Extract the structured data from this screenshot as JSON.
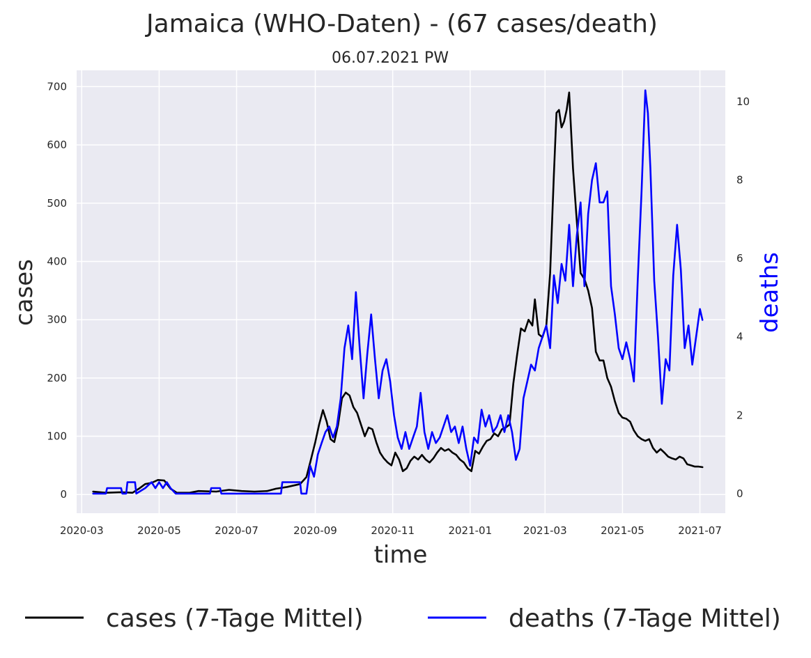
{
  "chart_data": {
    "type": "line",
    "title": "Jamaica (WHO-Daten) - (67 cases/death)",
    "subtitle": "06.07.2021 PW",
    "xlabel": "time",
    "ylabel": "cases",
    "y2label": "deaths",
    "ylim": [
      -32,
      728
    ],
    "y2lim": [
      -0.5,
      10.8
    ],
    "x_range": [
      "2020-02-26",
      "2021-07-21"
    ],
    "y_ticks": [
      0,
      100,
      200,
      300,
      400,
      500,
      600,
      700
    ],
    "y2_ticks": [
      0,
      2,
      4,
      6,
      8,
      10
    ],
    "x_ticks": [
      "2020-03",
      "2020-05",
      "2020-07",
      "2020-09",
      "2020-11",
      "2021-01",
      "2021-03",
      "2021-05",
      "2021-07"
    ],
    "grid": true,
    "legend_position": "below",
    "colors": {
      "cases": "#000000",
      "deaths": "#0000ff",
      "plot_bg": "#eaeaf2",
      "grid": "#ffffff"
    },
    "series": [
      {
        "name": "cases (7-Tage Mittel)",
        "axis": "left",
        "points": [
          [
            "2020-03-10",
            5
          ],
          [
            "2020-03-20",
            3
          ],
          [
            "2020-04-01",
            4
          ],
          [
            "2020-04-10",
            3
          ],
          [
            "2020-04-15",
            10
          ],
          [
            "2020-04-20",
            18
          ],
          [
            "2020-04-25",
            20
          ],
          [
            "2020-04-30",
            25
          ],
          [
            "2020-05-05",
            24
          ],
          [
            "2020-05-10",
            10
          ],
          [
            "2020-05-15",
            3
          ],
          [
            "2020-05-25",
            3
          ],
          [
            "2020-06-01",
            6
          ],
          [
            "2020-06-15",
            5
          ],
          [
            "2020-06-25",
            8
          ],
          [
            "2020-07-05",
            6
          ],
          [
            "2020-07-15",
            5
          ],
          [
            "2020-07-25",
            6
          ],
          [
            "2020-08-01",
            10
          ],
          [
            "2020-08-10",
            13
          ],
          [
            "2020-08-20",
            18
          ],
          [
            "2020-08-25",
            30
          ],
          [
            "2020-08-28",
            55
          ],
          [
            "2020-09-01",
            90
          ],
          [
            "2020-09-04",
            120
          ],
          [
            "2020-09-07",
            145
          ],
          [
            "2020-09-10",
            125
          ],
          [
            "2020-09-13",
            95
          ],
          [
            "2020-09-16",
            90
          ],
          [
            "2020-09-19",
            120
          ],
          [
            "2020-09-22",
            165
          ],
          [
            "2020-09-25",
            175
          ],
          [
            "2020-09-28",
            170
          ],
          [
            "2020-10-01",
            150
          ],
          [
            "2020-10-04",
            140
          ],
          [
            "2020-10-07",
            120
          ],
          [
            "2020-10-10",
            100
          ],
          [
            "2020-10-13",
            115
          ],
          [
            "2020-10-16",
            112
          ],
          [
            "2020-10-19",
            90
          ],
          [
            "2020-10-22",
            72
          ],
          [
            "2020-10-25",
            62
          ],
          [
            "2020-10-28",
            55
          ],
          [
            "2020-10-31",
            50
          ],
          [
            "2020-11-03",
            72
          ],
          [
            "2020-11-06",
            60
          ],
          [
            "2020-11-09",
            40
          ],
          [
            "2020-11-12",
            45
          ],
          [
            "2020-11-15",
            58
          ],
          [
            "2020-11-18",
            65
          ],
          [
            "2020-11-21",
            60
          ],
          [
            "2020-11-24",
            68
          ],
          [
            "2020-11-27",
            60
          ],
          [
            "2020-11-30",
            55
          ],
          [
            "2020-12-03",
            62
          ],
          [
            "2020-12-06",
            72
          ],
          [
            "2020-12-09",
            80
          ],
          [
            "2020-12-12",
            75
          ],
          [
            "2020-12-15",
            78
          ],
          [
            "2020-12-18",
            72
          ],
          [
            "2020-12-21",
            68
          ],
          [
            "2020-12-24",
            60
          ],
          [
            "2020-12-27",
            55
          ],
          [
            "2020-12-30",
            45
          ],
          [
            "2021-01-02",
            40
          ],
          [
            "2021-01-05",
            75
          ],
          [
            "2021-01-08",
            70
          ],
          [
            "2021-01-11",
            82
          ],
          [
            "2021-01-14",
            92
          ],
          [
            "2021-01-17",
            95
          ],
          [
            "2021-01-20",
            105
          ],
          [
            "2021-01-23",
            100
          ],
          [
            "2021-01-26",
            112
          ],
          [
            "2021-01-29",
            115
          ],
          [
            "2021-02-01",
            120
          ],
          [
            "2021-02-04",
            190
          ],
          [
            "2021-02-07",
            240
          ],
          [
            "2021-02-10",
            285
          ],
          [
            "2021-02-13",
            280
          ],
          [
            "2021-02-16",
            300
          ],
          [
            "2021-02-19",
            290
          ],
          [
            "2021-02-21",
            335
          ],
          [
            "2021-02-24",
            275
          ],
          [
            "2021-02-27",
            270
          ],
          [
            "2021-03-02",
            290
          ],
          [
            "2021-03-05",
            380
          ],
          [
            "2021-03-08",
            550
          ],
          [
            "2021-03-10",
            655
          ],
          [
            "2021-03-12",
            660
          ],
          [
            "2021-03-14",
            630
          ],
          [
            "2021-03-16",
            640
          ],
          [
            "2021-03-18",
            660
          ],
          [
            "2021-03-20",
            690
          ],
          [
            "2021-03-23",
            560
          ],
          [
            "2021-03-26",
            470
          ],
          [
            "2021-03-29",
            380
          ],
          [
            "2021-04-01",
            370
          ],
          [
            "2021-04-04",
            350
          ],
          [
            "2021-04-07",
            320
          ],
          [
            "2021-04-10",
            245
          ],
          [
            "2021-04-13",
            230
          ],
          [
            "2021-04-16",
            230
          ],
          [
            "2021-04-19",
            200
          ],
          [
            "2021-04-22",
            185
          ],
          [
            "2021-04-25",
            160
          ],
          [
            "2021-04-28",
            140
          ],
          [
            "2021-05-01",
            132
          ],
          [
            "2021-05-04",
            130
          ],
          [
            "2021-05-07",
            125
          ],
          [
            "2021-05-10",
            110
          ],
          [
            "2021-05-13",
            100
          ],
          [
            "2021-05-16",
            95
          ],
          [
            "2021-05-19",
            92
          ],
          [
            "2021-05-22",
            95
          ],
          [
            "2021-05-25",
            80
          ],
          [
            "2021-05-28",
            72
          ],
          [
            "2021-05-31",
            78
          ],
          [
            "2021-06-03",
            72
          ],
          [
            "2021-06-06",
            65
          ],
          [
            "2021-06-09",
            62
          ],
          [
            "2021-06-12",
            60
          ],
          [
            "2021-06-15",
            65
          ],
          [
            "2021-06-18",
            62
          ],
          [
            "2021-06-21",
            52
          ],
          [
            "2021-06-24",
            50
          ],
          [
            "2021-06-27",
            48
          ],
          [
            "2021-06-30",
            48
          ],
          [
            "2021-07-03",
            47
          ]
        ]
      },
      {
        "name": "deaths (7-Tage Mittel)",
        "axis": "right",
        "points": [
          [
            "2020-03-10",
            0
          ],
          [
            "2020-03-20",
            0
          ],
          [
            "2020-03-21",
            0.14
          ],
          [
            "2020-04-01",
            0.14
          ],
          [
            "2020-04-02",
            0
          ],
          [
            "2020-04-05",
            0
          ],
          [
            "2020-04-06",
            0.29
          ],
          [
            "2020-04-12",
            0.29
          ],
          [
            "2020-04-13",
            0
          ],
          [
            "2020-04-20",
            0.14
          ],
          [
            "2020-04-25",
            0.29
          ],
          [
            "2020-04-28",
            0.14
          ],
          [
            "2020-05-01",
            0.29
          ],
          [
            "2020-05-04",
            0.14
          ],
          [
            "2020-05-07",
            0.29
          ],
          [
            "2020-05-10",
            0.14
          ],
          [
            "2020-05-14",
            0
          ],
          [
            "2020-06-10",
            0
          ],
          [
            "2020-06-11",
            0.14
          ],
          [
            "2020-06-18",
            0.14
          ],
          [
            "2020-06-19",
            0
          ],
          [
            "2020-08-05",
            0
          ],
          [
            "2020-08-06",
            0.29
          ],
          [
            "2020-08-20",
            0.29
          ],
          [
            "2020-08-21",
            0
          ],
          [
            "2020-08-25",
            0
          ],
          [
            "2020-08-28",
            0.71
          ],
          [
            "2020-08-31",
            0.43
          ],
          [
            "2020-09-03",
            1.0
          ],
          [
            "2020-09-06",
            1.29
          ],
          [
            "2020-09-09",
            1.57
          ],
          [
            "2020-09-12",
            1.71
          ],
          [
            "2020-09-15",
            1.43
          ],
          [
            "2020-09-18",
            1.71
          ],
          [
            "2020-09-21",
            2.43
          ],
          [
            "2020-09-24",
            3.71
          ],
          [
            "2020-09-27",
            4.29
          ],
          [
            "2020-09-30",
            3.43
          ],
          [
            "2020-10-03",
            5.14
          ],
          [
            "2020-10-06",
            3.71
          ],
          [
            "2020-10-09",
            2.43
          ],
          [
            "2020-10-12",
            3.57
          ],
          [
            "2020-10-15",
            4.57
          ],
          [
            "2020-10-18",
            3.43
          ],
          [
            "2020-10-21",
            2.43
          ],
          [
            "2020-10-24",
            3.14
          ],
          [
            "2020-10-27",
            3.43
          ],
          [
            "2020-10-30",
            2.86
          ],
          [
            "2020-11-02",
            2.0
          ],
          [
            "2020-11-05",
            1.43
          ],
          [
            "2020-11-08",
            1.14
          ],
          [
            "2020-11-11",
            1.57
          ],
          [
            "2020-11-14",
            1.14
          ],
          [
            "2020-11-17",
            1.43
          ],
          [
            "2020-11-20",
            1.71
          ],
          [
            "2020-11-23",
            2.57
          ],
          [
            "2020-11-26",
            1.57
          ],
          [
            "2020-11-29",
            1.14
          ],
          [
            "2020-12-02",
            1.57
          ],
          [
            "2020-12-05",
            1.29
          ],
          [
            "2020-12-08",
            1.43
          ],
          [
            "2020-12-11",
            1.71
          ],
          [
            "2020-12-14",
            2.0
          ],
          [
            "2020-12-17",
            1.57
          ],
          [
            "2020-12-20",
            1.71
          ],
          [
            "2020-12-23",
            1.29
          ],
          [
            "2020-12-26",
            1.71
          ],
          [
            "2020-12-29",
            1.14
          ],
          [
            "2021-01-01",
            0.71
          ],
          [
            "2021-01-04",
            1.43
          ],
          [
            "2021-01-07",
            1.29
          ],
          [
            "2021-01-10",
            2.14
          ],
          [
            "2021-01-13",
            1.71
          ],
          [
            "2021-01-16",
            2.0
          ],
          [
            "2021-01-19",
            1.57
          ],
          [
            "2021-01-22",
            1.71
          ],
          [
            "2021-01-25",
            2.0
          ],
          [
            "2021-01-28",
            1.57
          ],
          [
            "2021-01-31",
            2.0
          ],
          [
            "2021-02-03",
            1.57
          ],
          [
            "2021-02-06",
            0.86
          ],
          [
            "2021-02-09",
            1.14
          ],
          [
            "2021-02-12",
            2.43
          ],
          [
            "2021-02-15",
            2.86
          ],
          [
            "2021-02-18",
            3.29
          ],
          [
            "2021-02-21",
            3.14
          ],
          [
            "2021-02-24",
            3.71
          ],
          [
            "2021-02-27",
            4.0
          ],
          [
            "2021-03-02",
            4.29
          ],
          [
            "2021-03-05",
            3.71
          ],
          [
            "2021-03-08",
            5.57
          ],
          [
            "2021-03-11",
            4.86
          ],
          [
            "2021-03-14",
            5.86
          ],
          [
            "2021-03-17",
            5.43
          ],
          [
            "2021-03-20",
            6.86
          ],
          [
            "2021-03-23",
            5.29
          ],
          [
            "2021-03-26",
            6.57
          ],
          [
            "2021-03-29",
            7.43
          ],
          [
            "2021-04-01",
            5.29
          ],
          [
            "2021-04-04",
            7.14
          ],
          [
            "2021-04-07",
            8.0
          ],
          [
            "2021-04-10",
            8.43
          ],
          [
            "2021-04-13",
            7.43
          ],
          [
            "2021-04-16",
            7.43
          ],
          [
            "2021-04-19",
            7.71
          ],
          [
            "2021-04-22",
            5.29
          ],
          [
            "2021-04-25",
            4.57
          ],
          [
            "2021-04-28",
            3.71
          ],
          [
            "2021-05-01",
            3.43
          ],
          [
            "2021-05-04",
            3.86
          ],
          [
            "2021-05-07",
            3.43
          ],
          [
            "2021-05-10",
            2.86
          ],
          [
            "2021-05-13",
            5.43
          ],
          [
            "2021-05-16",
            7.71
          ],
          [
            "2021-05-19",
            10.29
          ],
          [
            "2021-05-21",
            9.71
          ],
          [
            "2021-05-23",
            8.29
          ],
          [
            "2021-05-26",
            5.43
          ],
          [
            "2021-05-29",
            4.0
          ],
          [
            "2021-06-01",
            2.29
          ],
          [
            "2021-06-04",
            3.43
          ],
          [
            "2021-06-07",
            3.14
          ],
          [
            "2021-06-10",
            5.57
          ],
          [
            "2021-06-13",
            6.86
          ],
          [
            "2021-06-16",
            5.71
          ],
          [
            "2021-06-19",
            3.71
          ],
          [
            "2021-06-22",
            4.29
          ],
          [
            "2021-06-25",
            3.29
          ],
          [
            "2021-06-28",
            4.0
          ],
          [
            "2021-07-01",
            4.71
          ],
          [
            "2021-07-03",
            4.43
          ]
        ]
      }
    ]
  }
}
